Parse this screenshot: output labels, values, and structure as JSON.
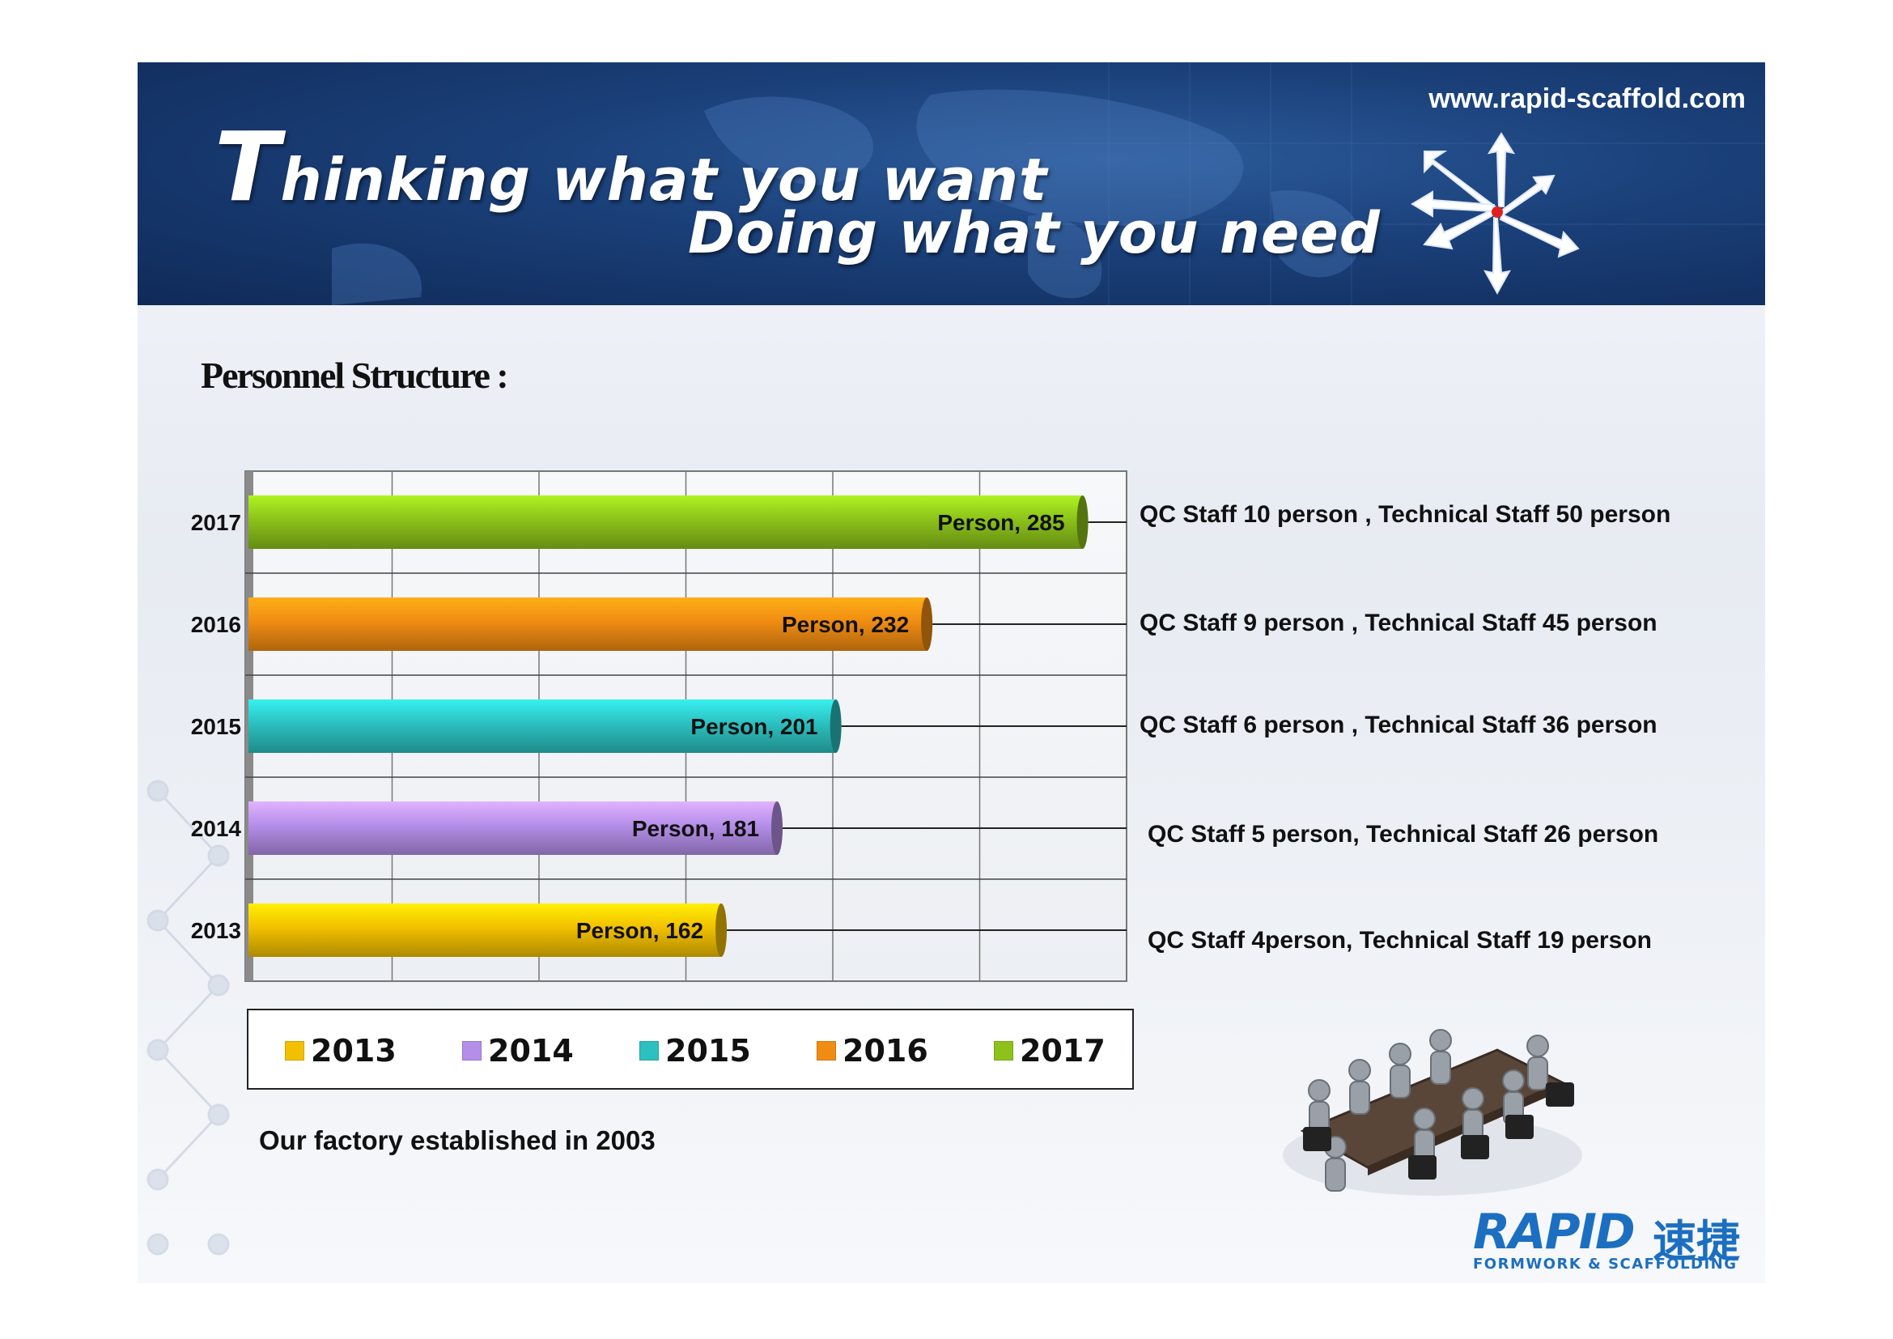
{
  "banner": {
    "tagline_line1_cap": "T",
    "tagline_line1_rest": "hinking what you want",
    "tagline_line2": "Doing what you need",
    "website": "www.rapid-scaffold.com",
    "background_color": "#1a3f78",
    "arrow_center_color": "#e02020"
  },
  "slide_title": "Personnel Structure :",
  "chart_data": {
    "type": "bar",
    "orientation": "horizontal",
    "categories": [
      "2017",
      "2016",
      "2015",
      "2014",
      "2013"
    ],
    "values": [
      285,
      232,
      201,
      181,
      162
    ],
    "data_labels": [
      "Person, 285",
      "Person, 232",
      "Person, 201",
      "Person, 181",
      "Person, 162"
    ],
    "colors": [
      "#8cc21a",
      "#f08c12",
      "#2cc0c0",
      "#b48ee8",
      "#f2c000"
    ],
    "xlim": [
      0,
      300
    ],
    "grid": true,
    "legend_position": "bottom",
    "legend": [
      {
        "label": "2013",
        "color": "#f2c000"
      },
      {
        "label": "2014",
        "color": "#b48ee8"
      },
      {
        "label": "2015",
        "color": "#2cc0c0"
      },
      {
        "label": "2016",
        "color": "#f08c12"
      },
      {
        "label": "2017",
        "color": "#8cc21a"
      }
    ],
    "annotations": [
      "QC Staff 10 person ,  Technical Staff 50 person",
      "QC Staff  9 person ,  Technical Staff 45 person",
      "QC Staff  6 person ,  Technical Staff 36 person",
      "QC Staff  5 person,  Technical Staff 26 person",
      "QC Staff  4person,  Technical Staff 19 person"
    ]
  },
  "established": "Our factory established in 2003",
  "logo": {
    "word": "RAPID",
    "chinese": "速捷",
    "subtitle": "FORMWORK & SCAFFOLDING",
    "color": "#1c6fc0"
  }
}
